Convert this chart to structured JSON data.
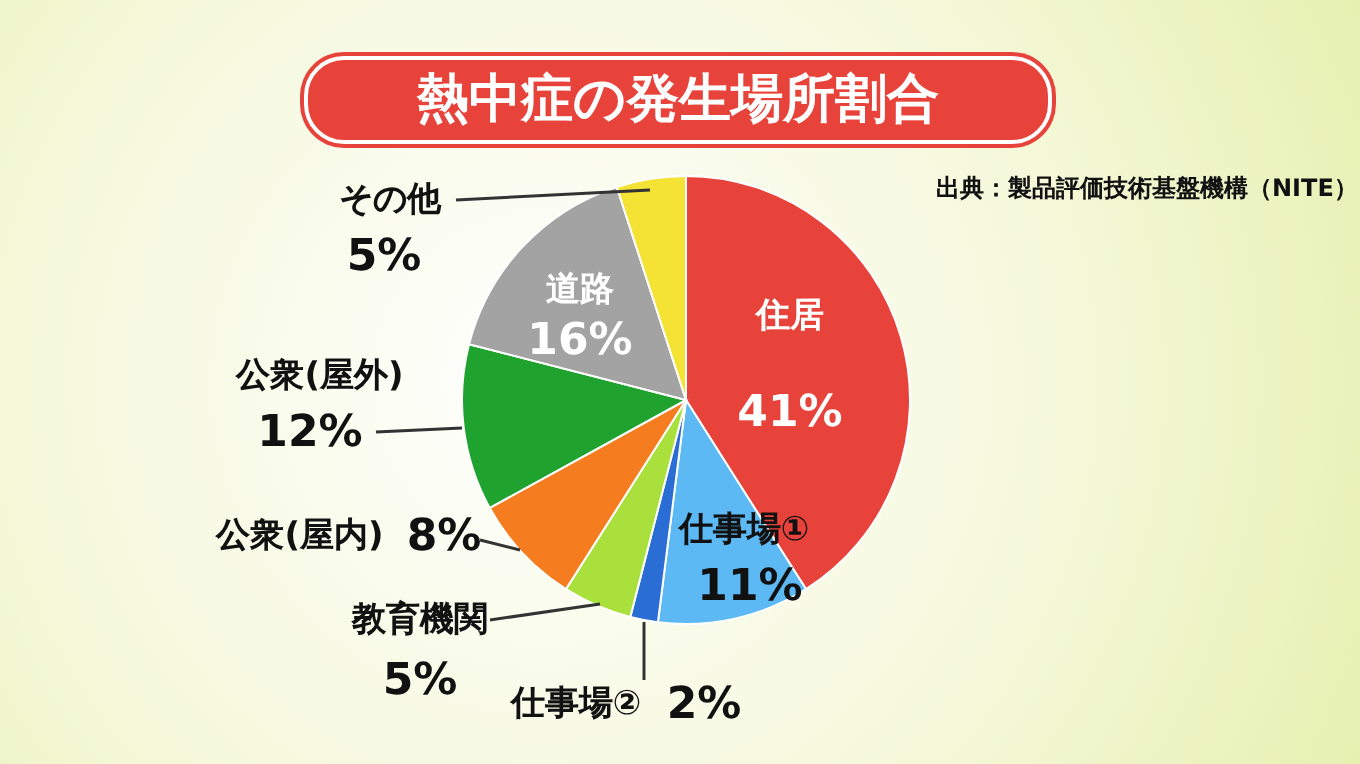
{
  "chart_data": {
    "type": "pie",
    "title": "熱中症の発生場所割合",
    "annotations": [
      "出典：製品評価技術基盤機構（NITE）"
    ],
    "categories": [
      "住居",
      "仕事場①",
      "仕事場②",
      "教育機関",
      "公衆(屋内)",
      "公衆(屋外)",
      "道路",
      "その他"
    ],
    "values": [
      41,
      11,
      2,
      5,
      8,
      12,
      16,
      5
    ],
    "value_labels": [
      "41%",
      "11%",
      "2%",
      "5%",
      "8%",
      "12%",
      "16%",
      "5%"
    ],
    "colors": [
      "#e8433a",
      "#5cb9f4",
      "#2a6dd4",
      "#a9e03c",
      "#f57d20",
      "#1fa22e",
      "#a3a3a3",
      "#f4e234"
    ]
  }
}
